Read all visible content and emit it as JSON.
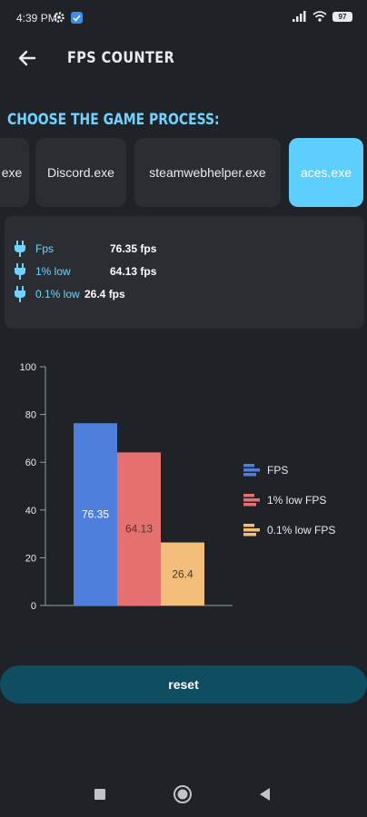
{
  "status_bar": {
    "time": "4:39 PM",
    "battery": "97",
    "icons": [
      "gear-icon",
      "app-notification-icon",
      "signal-icon",
      "wifi-icon",
      "battery-icon"
    ]
  },
  "app_bar": {
    "title": "FPS COUNTER",
    "back_icon": "arrow-left-icon"
  },
  "process_section": {
    "title": "CHOOSE THE GAME PROCESS:",
    "processes": [
      "exe",
      "Discord.exe",
      "steamwebhelper.exe",
      "aces.exe"
    ],
    "selected": "aces.exe"
  },
  "stats": [
    {
      "icon": "plug-icon",
      "label": "Fps",
      "value": "76.35 fps"
    },
    {
      "icon": "plug-icon",
      "label": "1% low",
      "value": "64.13 fps"
    },
    {
      "icon": "plug-icon",
      "label": "0.1% low",
      "value": "26.4 fps"
    }
  ],
  "chart_data": {
    "type": "bar",
    "categories": [
      "FPS",
      "1% low FPS",
      "0.1% low FPS"
    ],
    "values": [
      76.35,
      64.13,
      26.4
    ],
    "value_labels": [
      "76.35",
      "64.13",
      "26.4"
    ],
    "legend": [
      "FPS",
      "1% low FPS",
      "0.1% low FPS"
    ],
    "legend_placement": "right",
    "colors": [
      "#4f7fdc",
      "#e66f6f",
      "#f2be7a"
    ],
    "yticks": [
      "0",
      "20",
      "40",
      "60",
      "80",
      "100"
    ],
    "ylim": [
      0,
      100
    ],
    "grid": false,
    "title": "",
    "xlabel": "",
    "ylabel": ""
  },
  "reset_label": "reset",
  "colors": {
    "background": "#1f2226",
    "card": "#2a2e33",
    "accent": "#5ccfff",
    "reset_button": "#0f4e61"
  },
  "nav_bar": {
    "icons": [
      "square-icon",
      "circle-icon",
      "triangle-back-icon"
    ]
  }
}
